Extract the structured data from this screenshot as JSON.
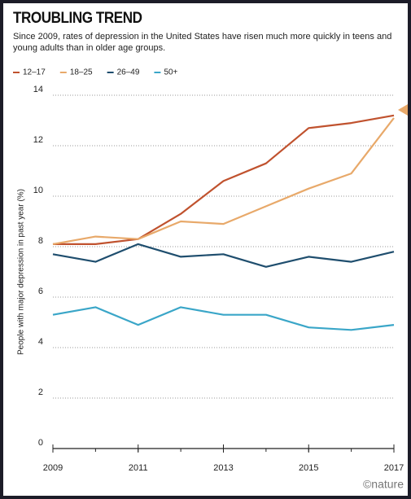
{
  "chart_data": {
    "type": "line",
    "title": "TROUBLING TREND",
    "subtitle": "Since 2009, rates of depression in the United States have risen much more quickly in teens and young adults than in older age groups.",
    "y_label": "People with major depression in past year (%)",
    "source": "©nature",
    "x": [
      2009,
      2010,
      2011,
      2012,
      2013,
      2014,
      2015,
      2016,
      2017
    ],
    "xlim": [
      2009,
      2017
    ],
    "xticks": [
      2009,
      2011,
      2013,
      2015,
      2017
    ],
    "ylim": [
      0,
      14
    ],
    "yticks": [
      0,
      2,
      4,
      6,
      8,
      10,
      12,
      14
    ],
    "grid": true,
    "series": [
      {
        "name": "12–17",
        "color": "#c0522e",
        "values": [
          8.1,
          8.1,
          8.3,
          9.3,
          10.6,
          11.3,
          12.7,
          12.9,
          13.2
        ]
      },
      {
        "name": "18–25",
        "color": "#e8a96a",
        "values": [
          8.1,
          8.4,
          8.3,
          9.0,
          8.9,
          9.6,
          10.3,
          10.9,
          13.1
        ]
      },
      {
        "name": "26–49",
        "color": "#1f4e6e",
        "values": [
          7.7,
          7.4,
          8.1,
          7.6,
          7.7,
          7.2,
          7.6,
          7.4,
          7.8
        ]
      },
      {
        "name": "50+",
        "color": "#3aa6c8",
        "values": [
          5.3,
          5.6,
          4.9,
          5.6,
          5.3,
          5.3,
          4.8,
          4.7,
          4.9
        ]
      }
    ]
  }
}
